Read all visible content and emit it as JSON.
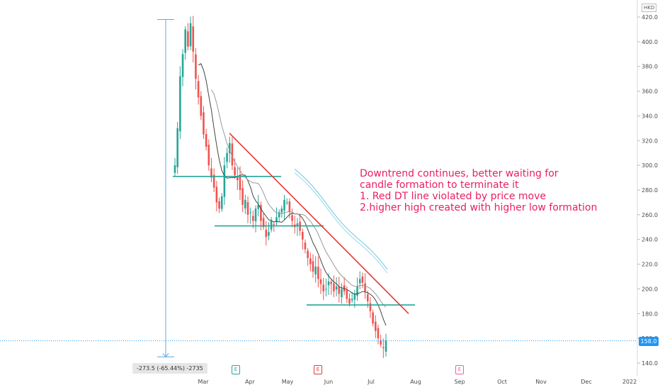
{
  "currency": "HKD",
  "last_price_label": "158.0",
  "measure_label": "-273.5 (-65.44%) -2735",
  "annotation": {
    "lines": [
      "Downtrend continues, better waiting for",
      "candle formation to terminate it",
      "1. Red DT line violated by price move",
      "2.higher high created with higher low formation"
    ]
  },
  "events": [
    {
      "name": "earnings-marker-1",
      "letter": "E",
      "color": "#26a69a"
    },
    {
      "name": "earnings-marker-2",
      "letter": "E",
      "color": "#e53935"
    },
    {
      "name": "earnings-marker-3",
      "letter": "E",
      "color": "#ec5fa0"
    }
  ],
  "colors": {
    "up": "#26a69a",
    "down": "#ef5350",
    "trendline": "#e53935",
    "support": "#26a69a",
    "ma_fast": "#444444",
    "ma_slow": "#999999",
    "ma_channel": "#6cc5e0",
    "measure": "#5aa9e6"
  },
  "chart_data": {
    "type": "candlestick",
    "y_axis": {
      "min": 140,
      "max": 420,
      "ticks": [
        140,
        160,
        180,
        200,
        220,
        240,
        260,
        280,
        300,
        320,
        340,
        360,
        380,
        400,
        420
      ]
    },
    "x_axis": {
      "tick_labels": [
        "Mar",
        "Apr",
        "May",
        "Jun",
        "Jul",
        "Aug",
        "Sep",
        "Oct",
        "Nov",
        "Dec",
        "2022"
      ]
    },
    "close_path": [
      300,
      330,
      372,
      390,
      410,
      396,
      415,
      392,
      370,
      355,
      340,
      325,
      315,
      300,
      290,
      282,
      270,
      265,
      275,
      300,
      310,
      318,
      300,
      292,
      288,
      280,
      268,
      272,
      260,
      262,
      255,
      265,
      268,
      255,
      250,
      242,
      246,
      255,
      252,
      258,
      262,
      265,
      272,
      270,
      262,
      255,
      250,
      253,
      247,
      240,
      232,
      225,
      220,
      214,
      218,
      208,
      204,
      198,
      200,
      206,
      204,
      198,
      202,
      196,
      200,
      198,
      192,
      188,
      192,
      196,
      202,
      208,
      205,
      198,
      190,
      182,
      172,
      166,
      160,
      155,
      152,
      158
    ],
    "support_lines": [
      291,
      251,
      187
    ],
    "trendline": {
      "start": 326,
      "end": 180
    },
    "last_price": 158,
    "measure": {
      "from": 418,
      "to": 145,
      "change": -273.5,
      "change_pct": -65.44
    }
  }
}
